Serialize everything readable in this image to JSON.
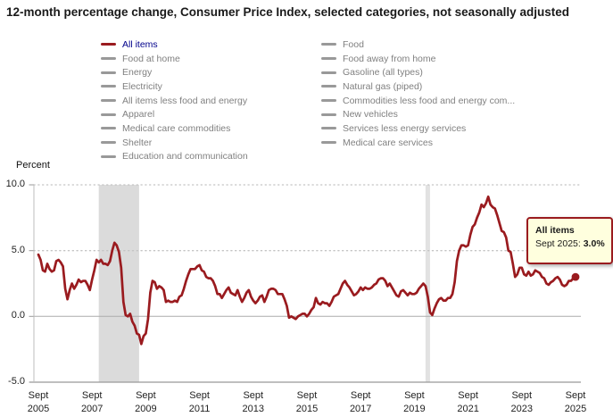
{
  "title": "12-month percentage change, Consumer Price Index, selected categories, not seasonally adjusted",
  "colors": {
    "line": "#9A1B1F",
    "legend_inactive_swatch": "#999999",
    "legend_inactive_text": "#808080",
    "legend_active_text": "#00008B",
    "grid_dotted": "#C4C4C4",
    "grid_zero": "#ABABAB",
    "axis": "#999999",
    "axis_left": "#BDBDBD",
    "band_2008": "#DBDBDB",
    "band_2020": "#E2E2E2",
    "tooltip_bg": "#FFFFDE"
  },
  "legend": {
    "columns": [
      {
        "items": [
          {
            "label": "All items",
            "active": true
          },
          {
            "label": "Food at home",
            "active": false
          },
          {
            "label": "Energy",
            "active": false
          },
          {
            "label": "Electricity",
            "active": false
          },
          {
            "label": "All items less food and energy",
            "active": false
          },
          {
            "label": "Apparel",
            "active": false
          },
          {
            "label": "Medical care commodities",
            "active": false
          },
          {
            "label": "Shelter",
            "active": false
          },
          {
            "label": "Education and communication",
            "active": false
          }
        ]
      },
      {
        "items": [
          {
            "label": "Food",
            "active": false
          },
          {
            "label": "Food away from home",
            "active": false
          },
          {
            "label": "Gasoline (all types)",
            "active": false
          },
          {
            "label": "Natural gas (piped)",
            "active": false
          },
          {
            "label": "Commodities less food and energy com...",
            "active": false
          },
          {
            "label": "New vehicles",
            "active": false
          },
          {
            "label": "Services less energy services",
            "active": false
          },
          {
            "label": "Medical care services",
            "active": false
          }
        ]
      }
    ]
  },
  "tooltip": {
    "title": "All items",
    "label": "Sept 2025:",
    "value": "3.0%"
  },
  "chart_data": {
    "type": "line",
    "title": "12-month percentage change, Consumer Price Index, selected categories, not seasonally adjusted",
    "ylabel": "Percent",
    "xlabel": "",
    "ylim": [
      -5,
      10
    ],
    "x_start": "Sept 2005",
    "x_end": "Sept 2025",
    "frequency": "monthly",
    "grid": "horizontal",
    "legend_position": "top",
    "y_ticks": [
      {
        "value": 10,
        "label": "10.0",
        "style": "dotted"
      },
      {
        "value": 5,
        "label": "5.0",
        "style": "dotted"
      },
      {
        "value": 0,
        "label": "0.0",
        "style": "solid"
      },
      {
        "value": -5,
        "label": "-5.0",
        "style": "axis"
      }
    ],
    "x_ticks": [
      {
        "month": 0,
        "line1": "Sept",
        "line2": "2005"
      },
      {
        "month": 24,
        "line1": "Sept",
        "line2": "2007"
      },
      {
        "month": 48,
        "line1": "Sept",
        "line2": "2009"
      },
      {
        "month": 72,
        "line1": "Sept",
        "line2": "2011"
      },
      {
        "month": 96,
        "line1": "Sept",
        "line2": "2013"
      },
      {
        "month": 120,
        "line1": "Sept",
        "line2": "2015"
      },
      {
        "month": 144,
        "line1": "Sept",
        "line2": "2017"
      },
      {
        "month": 168,
        "line1": "Sept",
        "line2": "2019"
      },
      {
        "month": 192,
        "line1": "Sept",
        "line2": "2021"
      },
      {
        "month": 216,
        "line1": "Sept",
        "line2": "2023"
      },
      {
        "month": 240,
        "line1": "Sept",
        "line2": "2025"
      }
    ],
    "recession_bands": [
      {
        "from_month": 27,
        "to_month": 45,
        "color": "#DBDBDB",
        "note": "Dec 2007 - Jun 2009"
      },
      {
        "from_month": 173,
        "to_month": 175,
        "color": "#E2E2E2",
        "note": "Feb 2020 - Apr 2020"
      }
    ],
    "series": [
      {
        "name": "All items",
        "color": "#9A1B1F",
        "values": [
          4.7,
          4.3,
          3.5,
          3.4,
          4.0,
          3.6,
          3.4,
          3.5,
          4.2,
          4.3,
          4.1,
          3.8,
          2.1,
          1.3,
          2.0,
          2.5,
          2.1,
          2.4,
          2.8,
          2.6,
          2.7,
          2.7,
          2.4,
          2.0,
          2.8,
          3.5,
          4.3,
          4.1,
          4.3,
          4.0,
          4.0,
          3.9,
          4.2,
          5.0,
          5.6,
          5.4,
          4.9,
          3.7,
          1.1,
          0.1,
          0.0,
          0.2,
          -0.4,
          -0.7,
          -1.3,
          -1.4,
          -2.1,
          -1.5,
          -1.3,
          -0.2,
          1.8,
          2.7,
          2.6,
          2.1,
          2.3,
          2.2,
          2.0,
          1.1,
          1.2,
          1.1,
          1.1,
          1.2,
          1.1,
          1.5,
          1.6,
          2.1,
          2.7,
          3.2,
          3.6,
          3.6,
          3.6,
          3.8,
          3.9,
          3.5,
          3.4,
          3.0,
          2.9,
          2.9,
          2.7,
          2.3,
          1.7,
          1.7,
          1.4,
          1.7,
          2.0,
          2.2,
          1.8,
          1.7,
          1.6,
          2.0,
          1.5,
          1.1,
          1.4,
          1.8,
          2.0,
          1.5,
          1.2,
          1.0,
          1.2,
          1.5,
          1.6,
          1.1,
          1.5,
          2.0,
          2.1,
          2.1,
          2.0,
          1.7,
          1.7,
          1.7,
          1.3,
          0.8,
          -0.1,
          0.0,
          -0.1,
          -0.2,
          0.0,
          0.1,
          0.2,
          0.2,
          0.0,
          0.2,
          0.5,
          0.7,
          1.4,
          1.0,
          0.9,
          1.1,
          1.0,
          1.0,
          0.8,
          1.1,
          1.5,
          1.6,
          1.7,
          2.1,
          2.5,
          2.7,
          2.4,
          2.2,
          1.9,
          1.6,
          1.7,
          1.9,
          2.2,
          2.0,
          2.2,
          2.1,
          2.1,
          2.2,
          2.4,
          2.5,
          2.8,
          2.9,
          2.9,
          2.7,
          2.3,
          2.5,
          2.2,
          1.9,
          1.6,
          1.5,
          1.9,
          2.0,
          1.8,
          1.6,
          1.8,
          1.7,
          1.7,
          1.8,
          2.1,
          2.3,
          2.5,
          2.3,
          1.5,
          0.3,
          0.1,
          0.6,
          1.0,
          1.3,
          1.4,
          1.2,
          1.2,
          1.4,
          1.4,
          1.7,
          2.6,
          4.2,
          5.0,
          5.4,
          5.4,
          5.3,
          5.4,
          6.2,
          6.8,
          7.0,
          7.5,
          7.9,
          8.5,
          8.3,
          8.6,
          9.1,
          8.5,
          8.3,
          8.2,
          7.7,
          7.1,
          6.5,
          6.4,
          6.0,
          5.0,
          4.9,
          4.0,
          3.0,
          3.2,
          3.7,
          3.7,
          3.2,
          3.1,
          3.4,
          3.1,
          3.2,
          3.5,
          3.4,
          3.3,
          3.0,
          2.9,
          2.5,
          2.4,
          2.6,
          2.7,
          2.9,
          3.0,
          2.8,
          2.4,
          2.3,
          2.4,
          2.7,
          2.7,
          2.9,
          3.0
        ]
      }
    ],
    "end_marker": {
      "month": 240,
      "value": 3.0,
      "label": "Sept 2025: 3.0%"
    }
  }
}
